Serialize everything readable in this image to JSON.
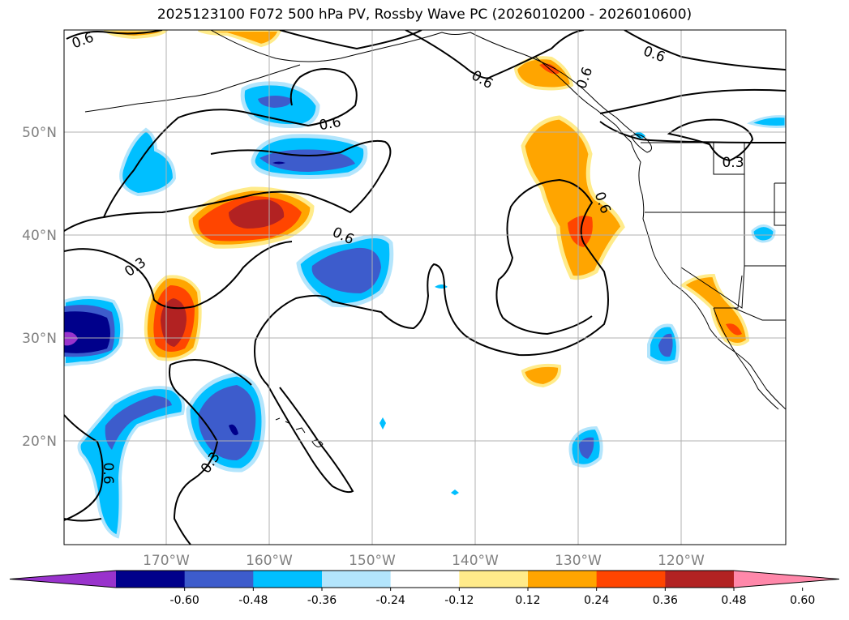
{
  "title": "2025123100 F072 500 hPa PV, Rossby Wave PC (2026010200 - 2026010600)",
  "gridlines": {
    "lat_labels": [
      "50°N",
      "40°N",
      "30°N",
      "20°N"
    ],
    "lon_labels": [
      "170°W",
      "160°W",
      "150°W",
      "140°W",
      "130°W",
      "120°W"
    ]
  },
  "contour_labels": [
    "0.6",
    "0.6",
    "0.6",
    "0.6",
    "0.3",
    "0.6",
    "0.6",
    "0.3",
    "0.3",
    "0.6",
    "0.6"
  ],
  "colorbar": {
    "colors": [
      "#9933cc",
      "#00008b",
      "#3d5ccc",
      "#00bfff",
      "#b3e5fc",
      "#ffffff",
      "#ffeb8a",
      "#ffa500",
      "#ff4500",
      "#b22222",
      "#ff88aa"
    ],
    "ticks": [
      "-0.60",
      "-0.48",
      "-0.36",
      "-0.24",
      "-0.12",
      "0.12",
      "0.24",
      "0.36",
      "0.48",
      "0.60"
    ]
  }
}
